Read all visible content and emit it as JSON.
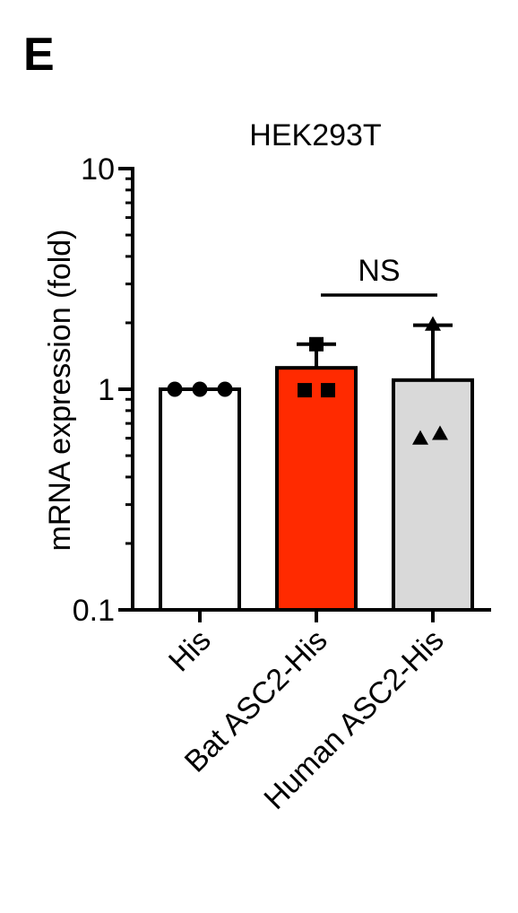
{
  "panel_label": "E",
  "chart_data": {
    "type": "bar",
    "title": "HEK293T",
    "xlabel": "",
    "ylabel": "mRNA expression (fold)",
    "yscale": "log",
    "ylim": [
      0.1,
      10
    ],
    "yticks": [
      {
        "value": 10,
        "label": "10"
      },
      {
        "value": 1,
        "label": "1"
      },
      {
        "value": 0.1,
        "label": "0.1"
      }
    ],
    "categories": [
      "His",
      "Bat ASC2-His",
      "Human ASC2-His"
    ],
    "values": [
      1.0,
      1.25,
      1.1
    ],
    "error_upper": [
      1.0,
      1.6,
      1.95
    ],
    "points": [
      {
        "shape": "circle",
        "values": [
          1.0,
          1.0,
          1.0
        ]
      },
      {
        "shape": "square",
        "values": [
          1.6,
          0.99,
          0.99
        ]
      },
      {
        "shape": "triangle",
        "values": [
          1.97,
          0.6,
          0.63
        ]
      }
    ],
    "bar_colors": [
      "#ffffff",
      "#ff2a00",
      "#d9d9d9"
    ],
    "significance": {
      "from": 1,
      "to": 2,
      "label": "NS"
    }
  }
}
